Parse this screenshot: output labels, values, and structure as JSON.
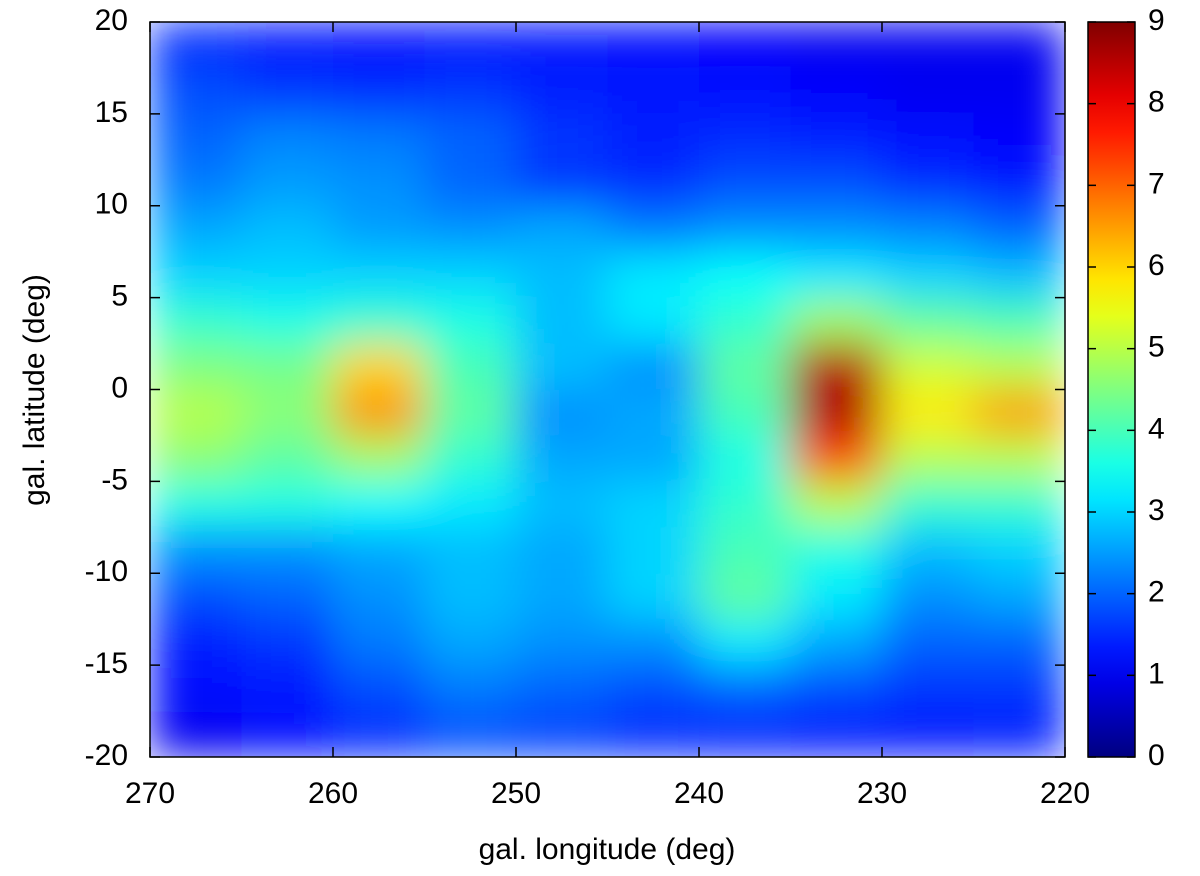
{
  "chart_data": {
    "type": "heatmap",
    "xlabel": "gal. longitude (deg)",
    "ylabel": "gal. latitude (deg)",
    "xlim": [
      270,
      220
    ],
    "ylim": [
      -20,
      20
    ],
    "xticks": [
      270,
      260,
      250,
      240,
      230,
      220
    ],
    "yticks": [
      -20,
      -15,
      -10,
      -5,
      0,
      5,
      10,
      15,
      20
    ],
    "zlim": [
      0,
      9
    ],
    "zticks": [
      0,
      1,
      2,
      3,
      4,
      5,
      6,
      7,
      8,
      9
    ],
    "colormap": "jet",
    "x": [
      267.5,
      262.5,
      257.5,
      252.5,
      247.5,
      242.5,
      237.5,
      232.5,
      227.5,
      222.5
    ],
    "y": [
      18.75,
      16.25,
      13.75,
      11.25,
      8.75,
      6.25,
      3.75,
      1.25,
      -1.25,
      -3.75,
      -6.25,
      -8.75,
      -11.25,
      -13.75,
      -16.25,
      -18.75
    ],
    "z": [
      [
        1.5,
        1.3,
        1.2,
        1.3,
        1.3,
        1.2,
        1.1,
        1.0,
        1.0,
        1.0
      ],
      [
        1.8,
        1.6,
        1.5,
        1.6,
        1.4,
        1.3,
        1.2,
        1.1,
        1.0,
        1.0
      ],
      [
        2.0,
        2.3,
        2.2,
        2.0,
        1.6,
        1.4,
        1.5,
        1.4,
        1.2,
        1.1
      ],
      [
        2.2,
        2.5,
        2.4,
        2.0,
        1.6,
        1.5,
        1.8,
        1.8,
        1.5,
        1.3
      ],
      [
        2.6,
        2.8,
        2.5,
        2.4,
        2.6,
        2.2,
        2.4,
        2.4,
        2.3,
        2.0
      ],
      [
        3.0,
        3.0,
        3.0,
        3.0,
        2.8,
        3.2,
        3.4,
        3.2,
        3.0,
        2.8
      ],
      [
        3.8,
        3.6,
        3.8,
        3.6,
        2.8,
        3.2,
        3.8,
        4.8,
        4.2,
        4.0
      ],
      [
        4.5,
        4.4,
        6.0,
        4.0,
        2.8,
        2.4,
        4.2,
        8.5,
        5.2,
        5.0
      ],
      [
        5.0,
        4.6,
        6.6,
        4.2,
        2.4,
        2.6,
        4.0,
        8.6,
        5.8,
        6.5
      ],
      [
        4.6,
        4.2,
        4.8,
        3.8,
        2.6,
        2.6,
        3.6,
        7.2,
        5.0,
        5.0
      ],
      [
        3.6,
        3.6,
        3.4,
        3.2,
        2.8,
        3.0,
        3.8,
        5.0,
        3.8,
        3.8
      ],
      [
        2.4,
        2.4,
        2.6,
        2.8,
        2.6,
        3.0,
        4.0,
        3.6,
        2.8,
        3.0
      ],
      [
        1.8,
        2.0,
        2.4,
        2.8,
        2.6,
        3.0,
        4.2,
        3.2,
        2.4,
        2.6
      ],
      [
        1.4,
        1.6,
        2.2,
        2.6,
        2.4,
        2.4,
        3.2,
        2.6,
        2.0,
        2.0
      ],
      [
        1.2,
        1.3,
        1.8,
        2.2,
        2.0,
        1.8,
        2.0,
        1.8,
        1.6,
        1.6
      ],
      [
        1.0,
        1.2,
        1.5,
        1.8,
        1.7,
        1.5,
        1.4,
        1.3,
        1.3,
        1.4
      ]
    ]
  }
}
